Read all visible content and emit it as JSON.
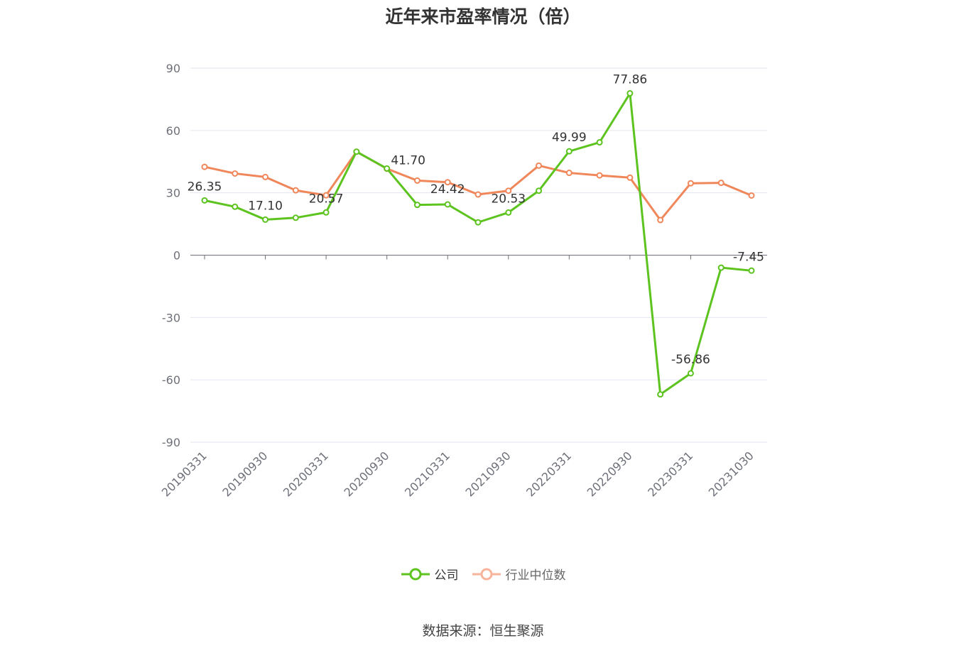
{
  "title": "近年来市盈率情况（倍）",
  "source": "数据来源：恒生聚源",
  "colors": {
    "company": "#5cc31f",
    "industry": "#f0875a",
    "grid": "#e3e6ef",
    "axis": "#6e7079",
    "tick_text": "#6e7079"
  },
  "chart_data": {
    "type": "line",
    "title": "近年来市盈率情况（倍）",
    "ylim": [
      -90,
      90
    ],
    "yticks": [
      90,
      60,
      30,
      0,
      -30,
      -60,
      -90
    ],
    "x_tick_labels": [
      "20190331",
      "20190930",
      "20200331",
      "20200930",
      "20210331",
      "20210930",
      "20220331",
      "20220930",
      "20230331",
      "20231030"
    ],
    "grid": true,
    "legend_position": "bottom",
    "x": [
      "20190331",
      "20190630",
      "20190930",
      "20191231",
      "20200331",
      "20200630",
      "20200930",
      "20201231",
      "20210331",
      "20210630",
      "20210930",
      "20211231",
      "20220331",
      "20220630",
      "20220930",
      "20221231",
      "20230331",
      "20230630",
      "20231030"
    ],
    "series": [
      {
        "name": "公司",
        "color": "#5cc31f",
        "values": [
          26.35,
          23.3,
          17.1,
          18.0,
          20.57,
          49.8,
          41.7,
          24.2,
          24.42,
          15.8,
          20.53,
          31.0,
          49.99,
          54.3,
          77.86,
          -67.0,
          -56.86,
          -6.0,
          -7.45
        ]
      },
      {
        "name": "行业中位数",
        "color": "#f0875a",
        "values": [
          42.5,
          39.3,
          37.6,
          31.2,
          28.8,
          49.8,
          41.6,
          35.9,
          35.1,
          29.2,
          31.0,
          43.1,
          39.6,
          38.4,
          37.3,
          16.9,
          34.6,
          34.8,
          28.7
        ]
      }
    ],
    "data_labels": [
      {
        "series": 0,
        "index": 0,
        "text": "26.35"
      },
      {
        "series": 0,
        "index": 2,
        "text": "17.10"
      },
      {
        "series": 0,
        "index": 4,
        "text": "20.57"
      },
      {
        "series": 0,
        "index": 6,
        "text": "41.70"
      },
      {
        "series": 0,
        "index": 8,
        "text": "24.42"
      },
      {
        "series": 0,
        "index": 10,
        "text": "20.53"
      },
      {
        "series": 0,
        "index": 12,
        "text": "49.99"
      },
      {
        "series": 0,
        "index": 14,
        "text": "77.86"
      },
      {
        "series": 0,
        "index": 16,
        "text": "-56.86"
      },
      {
        "series": 0,
        "index": 18,
        "text": "-7.45"
      }
    ]
  }
}
